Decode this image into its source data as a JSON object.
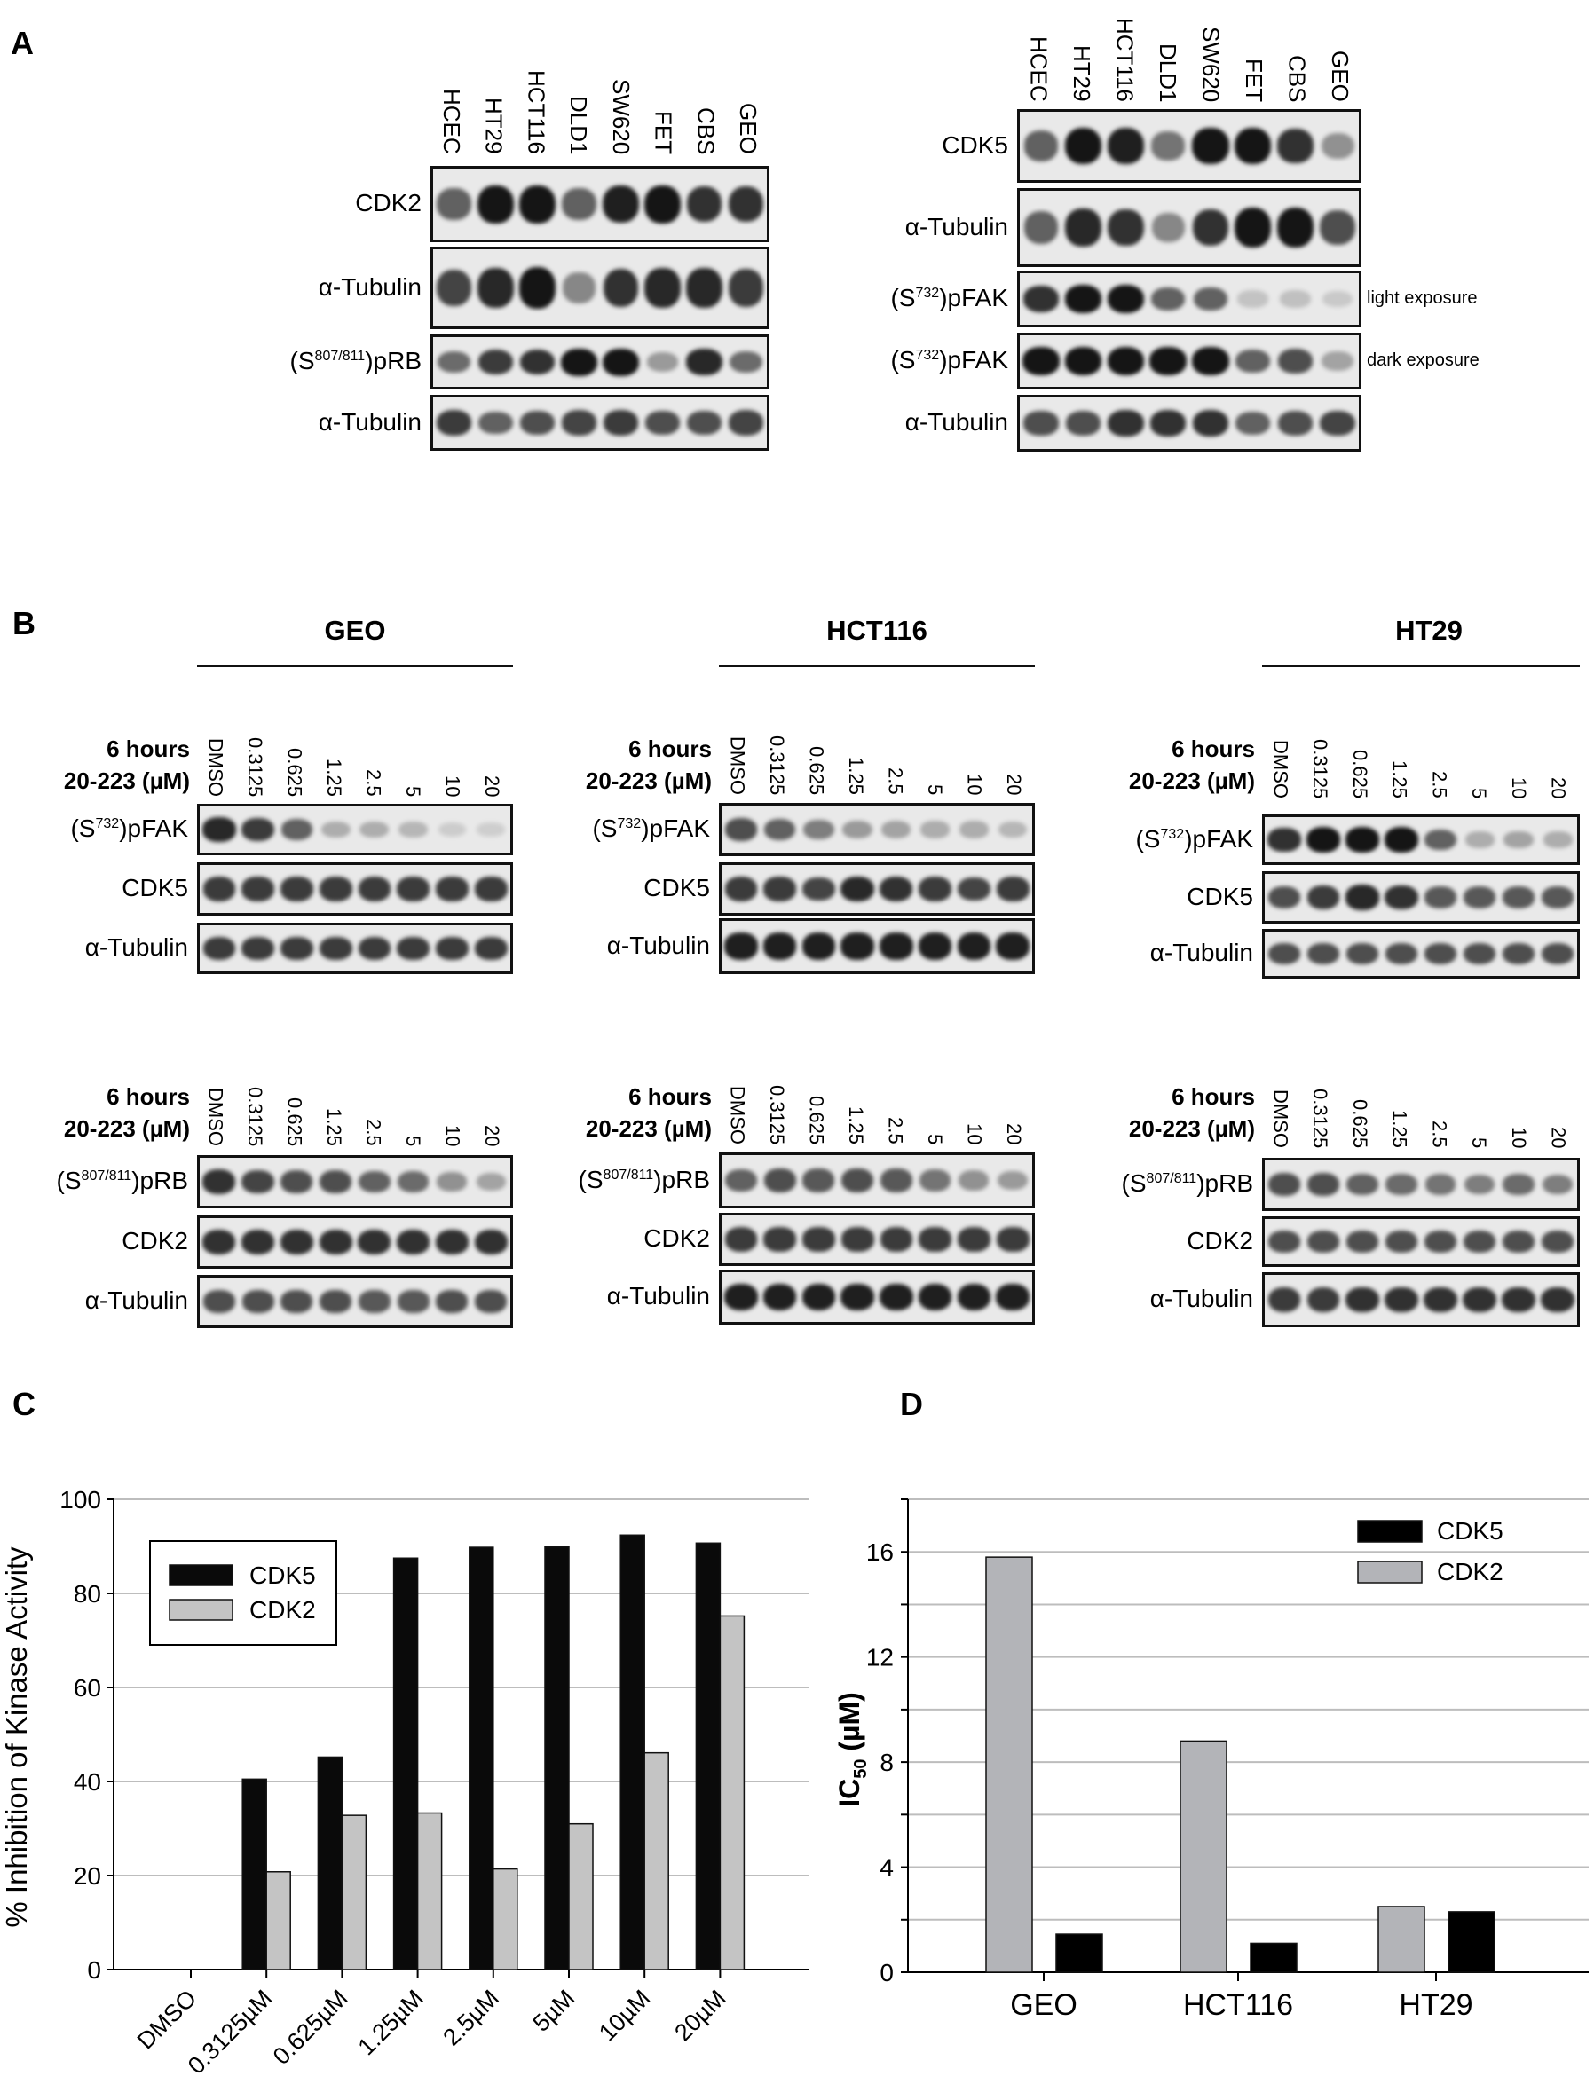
{
  "panel_a": {
    "label": "A",
    "left": {
      "lanes": [
        "HCEC",
        "HT29",
        "HCT116",
        "DLD1",
        "SW620",
        "FET",
        "CBS",
        "GEO"
      ],
      "rows": [
        {
          "label": {
            "pre": "CDK2"
          },
          "bands": [
            0.6,
            1,
            1,
            0.6,
            0.95,
            1,
            0.85,
            0.85
          ]
        },
        {
          "label": {
            "pre": "α-Tubulin"
          },
          "bands": [
            0.75,
            0.9,
            1,
            0.4,
            0.85,
            0.9,
            0.9,
            0.8
          ]
        },
        {
          "label": {
            "pre": "(S",
            "sup": "807/811",
            "post": ")pRB"
          },
          "bands": [
            0.55,
            0.8,
            0.85,
            1,
            1,
            0.3,
            0.9,
            0.55
          ]
        },
        {
          "label": {
            "pre": "α-Tubulin"
          },
          "bands": [
            0.8,
            0.6,
            0.7,
            0.75,
            0.8,
            0.7,
            0.7,
            0.75
          ]
        }
      ]
    },
    "right": {
      "lanes": [
        "HCEC",
        "HT29",
        "HCT116",
        "DLD1",
        "SW620",
        "FET",
        "CBS",
        "GEO"
      ],
      "rows": [
        {
          "label": {
            "pre": "CDK5"
          },
          "bands": [
            0.6,
            1,
            0.95,
            0.5,
            1,
            1,
            0.85,
            0.35
          ]
        },
        {
          "label": {
            "pre": "α-Tubulin"
          },
          "bands": [
            0.6,
            0.9,
            0.85,
            0.4,
            0.85,
            1,
            1,
            0.7
          ]
        },
        {
          "label": {
            "pre": "(S",
            "sup": "732",
            "post": ")pFAK"
          },
          "bands": [
            0.85,
            1,
            1,
            0.6,
            0.6,
            0.08,
            0.1,
            0.05
          ],
          "note": "light exposure"
        },
        {
          "label": {
            "pre": "(S",
            "sup": "732",
            "post": ")pFAK"
          },
          "bands": [
            1,
            1,
            1,
            1,
            1,
            0.6,
            0.7,
            0.25
          ],
          "note": "dark exposure"
        },
        {
          "label": {
            "pre": "α-Tubulin"
          },
          "bands": [
            0.7,
            0.7,
            0.85,
            0.85,
            0.85,
            0.6,
            0.7,
            0.75
          ]
        }
      ]
    }
  },
  "panel_b": {
    "label": "B",
    "header_line1": "6 hours",
    "header_line2": "20-223 (µM)",
    "lanes": [
      "DMSO",
      "0.3125",
      "0.625",
      "1.25",
      "2.5",
      "5",
      "10",
      "20"
    ],
    "groups": [
      {
        "title": "GEO",
        "top": [
          {
            "label": {
              "pre": "(S",
              "sup": "732",
              "post": ")pFAK"
            },
            "bands": [
              0.9,
              0.8,
              0.6,
              0.2,
              0.2,
              0.15,
              0.03,
              0.02
            ]
          },
          {
            "label": {
              "pre": "CDK5"
            },
            "bands": [
              0.8,
              0.8,
              0.8,
              0.8,
              0.8,
              0.8,
              0.8,
              0.8
            ]
          },
          {
            "label": {
              "pre": "α-Tubulin"
            },
            "bands": [
              0.8,
              0.8,
              0.8,
              0.8,
              0.8,
              0.8,
              0.8,
              0.8
            ]
          }
        ],
        "bottom": [
          {
            "label": {
              "pre": "(S",
              "sup": "807/811",
              "post": ")pRB"
            },
            "bands": [
              0.85,
              0.75,
              0.7,
              0.7,
              0.6,
              0.55,
              0.35,
              0.25
            ]
          },
          {
            "label": {
              "pre": "CDK2"
            },
            "bands": [
              0.85,
              0.85,
              0.85,
              0.85,
              0.85,
              0.85,
              0.85,
              0.85
            ]
          },
          {
            "label": {
              "pre": "α-Tubulin"
            },
            "bands": [
              0.7,
              0.7,
              0.7,
              0.7,
              0.65,
              0.65,
              0.7,
              0.7
            ]
          }
        ]
      },
      {
        "title": "HCT116",
        "top": [
          {
            "label": {
              "pre": "(S",
              "sup": "732",
              "post": ")pFAK"
            },
            "bands": [
              0.7,
              0.6,
              0.45,
              0.3,
              0.25,
              0.2,
              0.2,
              0.15
            ]
          },
          {
            "label": {
              "pre": "CDK5"
            },
            "bands": [
              0.8,
              0.8,
              0.75,
              0.9,
              0.85,
              0.8,
              0.75,
              0.8
            ]
          },
          {
            "label": {
              "pre": "α-Tubulin"
            },
            "bands": [
              0.95,
              0.95,
              0.95,
              0.95,
              0.95,
              0.95,
              0.95,
              0.95
            ]
          }
        ],
        "bottom": [
          {
            "label": {
              "pre": "(S",
              "sup": "807/811",
              "post": ")pRB"
            },
            "bands": [
              0.6,
              0.7,
              0.65,
              0.7,
              0.65,
              0.5,
              0.35,
              0.3
            ]
          },
          {
            "label": {
              "pre": "CDK2"
            },
            "bands": [
              0.8,
              0.8,
              0.8,
              0.8,
              0.8,
              0.8,
              0.8,
              0.8
            ]
          },
          {
            "label": {
              "pre": "α-Tubulin"
            },
            "bands": [
              0.95,
              0.95,
              0.95,
              0.95,
              0.95,
              0.95,
              0.95,
              0.95
            ]
          }
        ]
      },
      {
        "title": "HT29",
        "top": [
          {
            "label": {
              "pre": "(S",
              "sup": "732",
              "post": ")pFAK"
            },
            "bands": [
              0.85,
              1,
              1,
              1,
              0.6,
              0.2,
              0.25,
              0.2
            ]
          },
          {
            "label": {
              "pre": "CDK5"
            },
            "bands": [
              0.7,
              0.8,
              0.9,
              0.85,
              0.65,
              0.65,
              0.65,
              0.65
            ]
          },
          {
            "label": {
              "pre": "α-Tubulin"
            },
            "bands": [
              0.7,
              0.7,
              0.7,
              0.7,
              0.7,
              0.7,
              0.7,
              0.7
            ]
          }
        ],
        "bottom": [
          {
            "label": {
              "pre": "(S",
              "sup": "807/811",
              "post": ")pRB"
            },
            "bands": [
              0.7,
              0.7,
              0.6,
              0.55,
              0.5,
              0.45,
              0.55,
              0.45
            ]
          },
          {
            "label": {
              "pre": "CDK2"
            },
            "bands": [
              0.7,
              0.7,
              0.7,
              0.7,
              0.7,
              0.7,
              0.7,
              0.7
            ]
          },
          {
            "label": {
              "pre": "α-Tubulin"
            },
            "bands": [
              0.8,
              0.8,
              0.85,
              0.85,
              0.85,
              0.85,
              0.85,
              0.85
            ]
          }
        ]
      }
    ]
  },
  "chart_data": [
    {
      "panel": "C",
      "type": "bar",
      "categories": [
        "DMSO",
        "0.3125µM",
        "0.625µM",
        "1.25µM",
        "2.5µM",
        "5µM",
        "10µM",
        "20µM"
      ],
      "series": [
        {
          "name": "CDK5",
          "color": "#0a0a0a",
          "values": [
            0,
            40.5,
            45.2,
            87.5,
            89.8,
            89.9,
            92.4,
            90.7
          ]
        },
        {
          "name": "CDK2",
          "color": "#c4c4c4",
          "values": [
            0,
            20.8,
            32.8,
            33.3,
            21.4,
            31.0,
            46.1,
            75.2
          ]
        }
      ],
      "ylabel": "% Inhibition of Kinase Activity",
      "ylim": [
        0,
        100
      ],
      "yticks": [
        0,
        20,
        40,
        60,
        80,
        100
      ],
      "grid": true,
      "legend": "top-left, boxed"
    },
    {
      "panel": "D",
      "type": "bar",
      "categories": [
        "GEO",
        "HCT116",
        "HT29"
      ],
      "series": [
        {
          "name": "CDK2",
          "color": "#b3b4b8",
          "values": [
            15.8,
            8.8,
            2.5
          ]
        },
        {
          "name": "CDK5",
          "color": "#000000",
          "values": [
            1.45,
            1.1,
            2.3
          ]
        }
      ],
      "legend_order": [
        "CDK5",
        "CDK2"
      ],
      "ylabel_main": "IC",
      "ylabel_sub": "50",
      "ylabel_unit": " (µM)",
      "ylim": [
        0,
        18
      ],
      "yticks": [
        0,
        4,
        8,
        12,
        16
      ],
      "grid": true,
      "legend": "top-right"
    }
  ]
}
